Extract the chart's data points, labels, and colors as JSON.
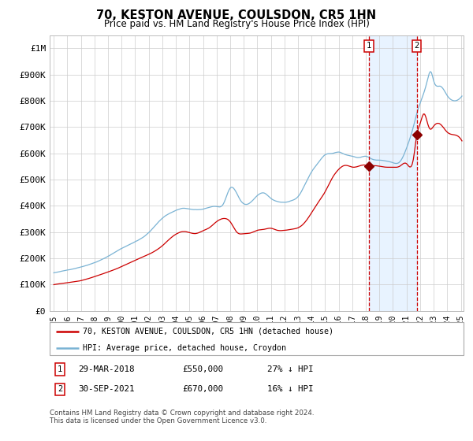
{
  "title": "70, KESTON AVENUE, COULSDON, CR5 1HN",
  "subtitle": "Price paid vs. HM Land Registry's House Price Index (HPI)",
  "legend_line1": "70, KESTON AVENUE, COULSDON, CR5 1HN (detached house)",
  "legend_line2": "HPI: Average price, detached house, Croydon",
  "sale1_label": "1",
  "sale1_date": "29-MAR-2018",
  "sale1_price": "£550,000",
  "sale1_note": "27% ↓ HPI",
  "sale1_year": 2018.23,
  "sale1_value": 550000,
  "sale2_label": "2",
  "sale2_date": "30-SEP-2021",
  "sale2_price": "£670,000",
  "sale2_note": "16% ↓ HPI",
  "sale2_year": 2021.75,
  "sale2_value": 670000,
  "hpi_color": "#7ab3d4",
  "price_color": "#cc0000",
  "marker_color": "#8b0000",
  "vline_color": "#cc0000",
  "shade_color": "#ddeeff",
  "footer": "Contains HM Land Registry data © Crown copyright and database right 2024.\nThis data is licensed under the Open Government Licence v3.0.",
  "ylim": [
    0,
    1050000
  ],
  "yticks": [
    0,
    100000,
    200000,
    300000,
    400000,
    500000,
    600000,
    700000,
    800000,
    900000,
    1000000
  ],
  "ytick_labels": [
    "£0",
    "£100K",
    "£200K",
    "£300K",
    "£400K",
    "£500K",
    "£600K",
    "£700K",
    "£800K",
    "£900K",
    "£1M"
  ],
  "xmin": 1994.7,
  "xmax": 2025.2
}
